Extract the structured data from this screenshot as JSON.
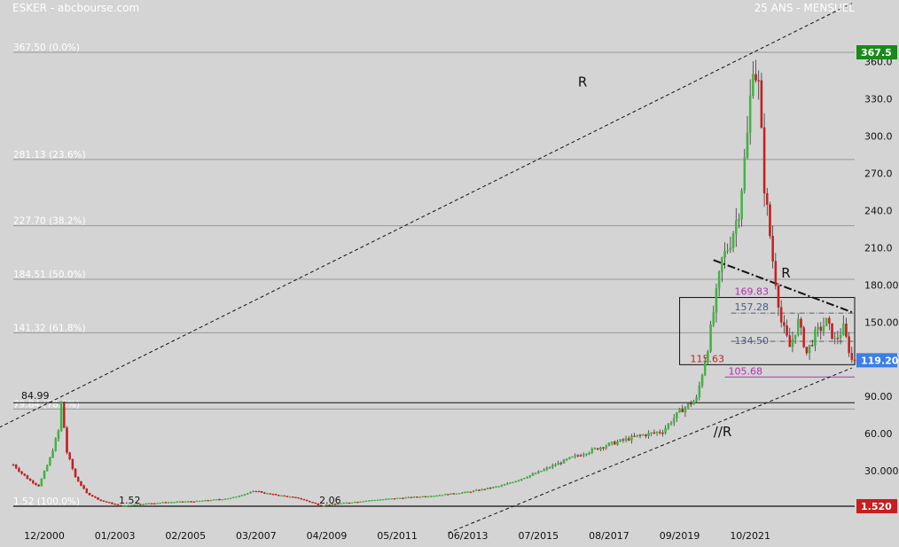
{
  "header": {
    "symbol": "ESKER",
    "source": "abcbourse.com",
    "period": "25 ANS - MENSUEL"
  },
  "colors": {
    "background": "#d4d4d4",
    "up": "#3fb53f",
    "down": "#c81e1e",
    "fib_line": "#999999",
    "last_price_box": "#3a7ee8",
    "high_box": "#1a8a1a",
    "low_box": "#c81e1e",
    "magenta": "#b030b0",
    "slate": "#4a5a8a"
  },
  "chart_data": {
    "type": "candlestick",
    "title": "",
    "xlabel": "",
    "ylabel": "",
    "x_range": [
      "2000-01",
      "2024-11"
    ],
    "ylim": [
      0,
      375
    ],
    "grid": false,
    "x_ticks": [
      {
        "label": "12/2000",
        "date": "2000-12"
      },
      {
        "label": "01/2003",
        "date": "2003-01"
      },
      {
        "label": "02/2005",
        "date": "2005-02"
      },
      {
        "label": "03/2007",
        "date": "2007-03"
      },
      {
        "label": "04/2009",
        "date": "2009-04"
      },
      {
        "label": "05/2011",
        "date": "2011-05"
      },
      {
        "label": "06/2013",
        "date": "2013-06"
      },
      {
        "label": "07/2015",
        "date": "2015-07"
      },
      {
        "label": "08/2017",
        "date": "2017-08"
      },
      {
        "label": "09/2019",
        "date": "2019-09"
      },
      {
        "label": "10/2021",
        "date": "2021-10"
      }
    ],
    "y_ticks": [
      {
        "label": "30.000",
        "value": 30
      },
      {
        "label": "60.00",
        "value": 60
      },
      {
        "label": "90.00",
        "value": 90
      },
      {
        "label": "120.00",
        "value": 120
      },
      {
        "label": "150.00",
        "value": 150
      },
      {
        "label": "180.00",
        "value": 180
      },
      {
        "label": "210.0",
        "value": 210
      },
      {
        "label": "240.0",
        "value": 240
      },
      {
        "label": "270.0",
        "value": 270
      },
      {
        "label": "300.0",
        "value": 300
      },
      {
        "label": "330.0",
        "value": 330
      },
      {
        "label": "360.0",
        "value": 360
      }
    ],
    "fibonacci_levels": [
      {
        "label": "367.50 (0.0%)",
        "value": 367.5
      },
      {
        "label": "281.13 (23.6%)",
        "value": 281.13
      },
      {
        "label": "227.70 (38.2%)",
        "value": 227.7
      },
      {
        "label": "184.51 (50.0%)",
        "value": 184.51
      },
      {
        "label": "141.32 (61.8%)",
        "value": 141.32
      },
      {
        "label": "79.84 (78.6%)",
        "value": 79.84
      },
      {
        "label": "1.52 (100.0%)",
        "value": 1.52
      }
    ],
    "horizontal_levels": [
      {
        "label": "84.99",
        "value": 84.99
      },
      {
        "label": "1.52",
        "value": 1.52
      },
      {
        "label": "2.06",
        "value": 2.06
      }
    ],
    "price_boxes": {
      "last": {
        "label": "119.20",
        "value": 119.2
      },
      "high": {
        "label": "367.5",
        "value": 367.5
      },
      "low": {
        "label": "1.520",
        "value": 1.52
      }
    },
    "range_box": {
      "top": 169.83,
      "bottom": 115.63,
      "from": "2019-09",
      "to": "2024-11",
      "levels": [
        {
          "label": "169.83",
          "value": 169.83,
          "color": "magenta"
        },
        {
          "label": "157.28",
          "value": 157.28,
          "color": "slate"
        },
        {
          "label": "134.50",
          "value": 134.5,
          "color": "slate"
        },
        {
          "label": "115.63",
          "value": 115.63,
          "color": "down"
        }
      ]
    },
    "support_105": {
      "label": "105.68",
      "value": 105.68,
      "from": "2021-01",
      "to": "2024-11"
    },
    "annotations": [
      {
        "text": "R",
        "date": "2016-09",
        "value": 340
      },
      {
        "text": "R",
        "date": "2022-09",
        "value": 186
      },
      {
        "text": "//R",
        "date": "2020-09",
        "value": 58
      }
    ],
    "trend_lines": [
      {
        "name": "upper-channel",
        "style": "dashed",
        "from": {
          "date": "1999-08",
          "value": 65
        },
        "to": {
          "date": "2024-10",
          "value": 407
        }
      },
      {
        "name": "lower-channel",
        "style": "dashed",
        "from": {
          "date": "2012-11",
          "value": -20
        },
        "to": {
          "date": "2024-10",
          "value": 113
        }
      },
      {
        "name": "resistance-R",
        "style": "dashdot",
        "from": {
          "date": "2020-09",
          "value": 200
        },
        "to": {
          "date": "2024-10",
          "value": 158
        }
      }
    ],
    "price_path": [
      [
        "2000-01",
        35
      ],
      [
        "2000-04",
        28
      ],
      [
        "2000-07",
        22
      ],
      [
        "2000-10",
        18
      ],
      [
        "2001-02",
        40
      ],
      [
        "2001-05",
        62
      ],
      [
        "2001-06",
        84.99
      ],
      [
        "2001-08",
        45
      ],
      [
        "2001-11",
        25
      ],
      [
        "2002-03",
        12
      ],
      [
        "2002-08",
        6
      ],
      [
        "2003-01",
        3
      ],
      [
        "2003-03",
        1.52
      ],
      [
        "2003-08",
        3
      ],
      [
        "2004-06",
        4.5
      ],
      [
        "2005-06",
        5.5
      ],
      [
        "2006-06",
        8
      ],
      [
        "2007-03",
        14
      ],
      [
        "2007-06",
        12
      ],
      [
        "2008-06",
        8
      ],
      [
        "2009-02",
        2.06
      ],
      [
        "2009-10",
        4
      ],
      [
        "2010-06",
        6
      ],
      [
        "2011-05",
        8
      ],
      [
        "2012-06",
        10
      ],
      [
        "2013-06",
        13
      ],
      [
        "2014-06",
        18
      ],
      [
        "2015-06",
        28
      ],
      [
        "2016-06",
        40
      ],
      [
        "2017-06",
        50
      ],
      [
        "2018-06",
        58
      ],
      [
        "2019-03",
        62
      ],
      [
        "2019-09",
        78
      ],
      [
        "2020-03",
        88
      ],
      [
        "2020-07",
        130
      ],
      [
        "2020-12",
        200
      ],
      [
        "2021-03",
        215
      ],
      [
        "2021-06",
        240
      ],
      [
        "2021-09",
        300
      ],
      [
        "2021-11",
        360
      ],
      [
        "2022-01",
        340
      ],
      [
        "2022-03",
        260
      ],
      [
        "2022-06",
        200
      ],
      [
        "2022-09",
        150
      ],
      [
        "2022-12",
        130
      ],
      [
        "2023-03",
        150
      ],
      [
        "2023-06",
        125
      ],
      [
        "2023-09",
        140
      ],
      [
        "2024-01",
        150
      ],
      [
        "2024-04",
        135
      ],
      [
        "2024-07",
        145
      ],
      [
        "2024-10",
        119.2
      ]
    ]
  }
}
